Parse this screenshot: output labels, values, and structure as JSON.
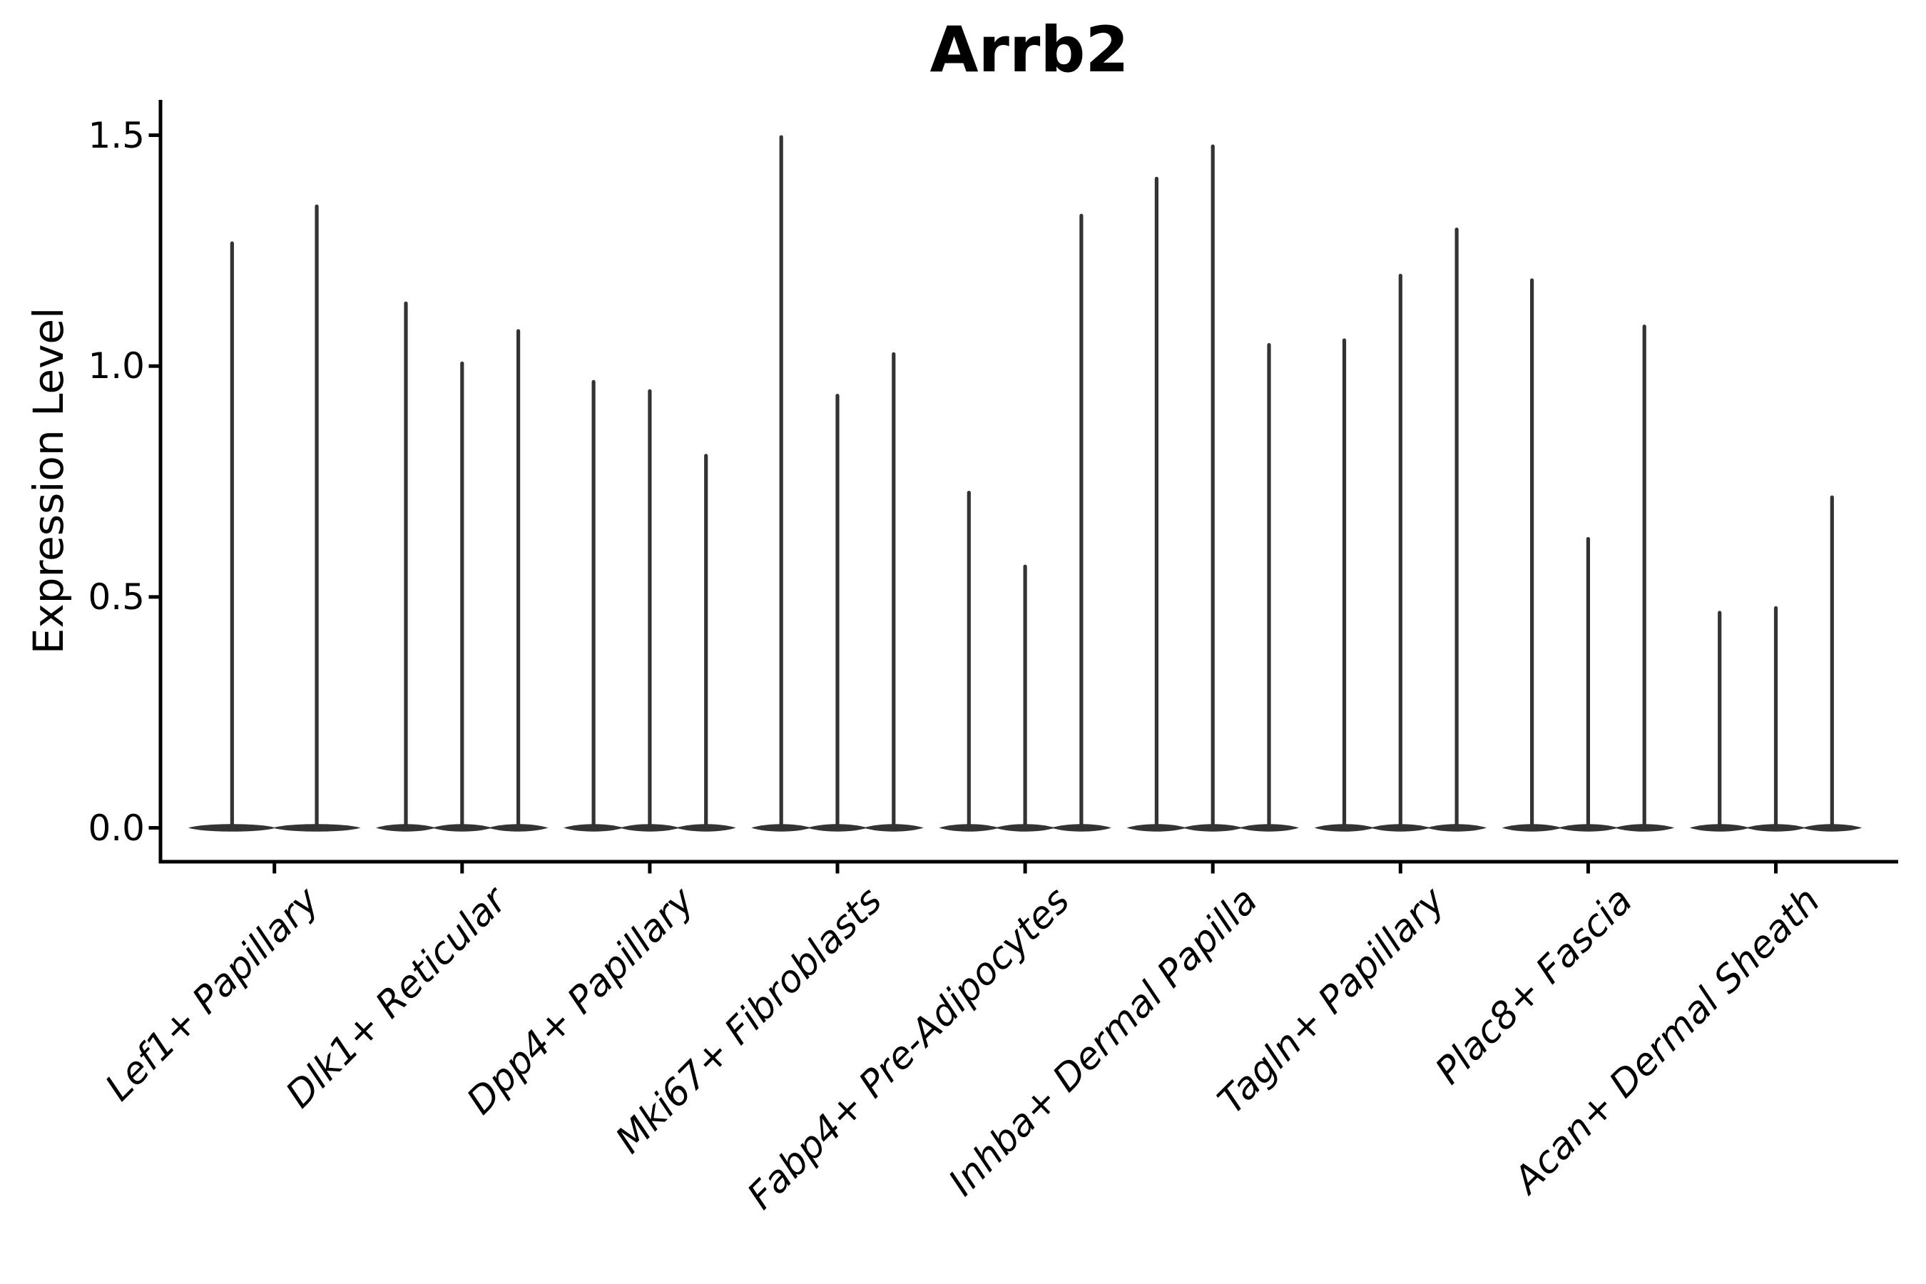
{
  "chart_data": {
    "type": "violin",
    "title": "Arrb2",
    "ylabel": "Expression Level",
    "xlabel": "",
    "ytick_labels": [
      "0.0",
      "0.5",
      "1.0",
      "1.5"
    ],
    "ytick_values": [
      0.0,
      0.5,
      1.0,
      1.5
    ],
    "ylim": [
      0.0,
      1.5
    ],
    "grid": false,
    "legend": "none",
    "violin_color": "#333333",
    "axis_color": "#000000",
    "categories": [
      "Lef1+ Papillary",
      "Dlk1+ Reticular",
      "Dpp4+ Papillary",
      "Mki67+ Fibroblasts",
      "Fabp4+ Pre-Adipocytes",
      "Inhba+ Dermal Papilla",
      "Tagln+ Papillary",
      "Plac8+ Fascia",
      "Acan+ Dermal Sheath"
    ],
    "series": [
      {
        "category": "Lef1+ Papillary",
        "violin_max_expression": [
          1.27,
          1.35
        ],
        "bulk_at": 0.0
      },
      {
        "category": "Dlk1+ Reticular",
        "violin_max_expression": [
          1.14,
          1.01,
          1.08
        ],
        "bulk_at": 0.0
      },
      {
        "category": "Dpp4+ Papillary",
        "violin_max_expression": [
          0.97,
          0.95,
          0.81
        ],
        "bulk_at": 0.0
      },
      {
        "category": "Mki67+ Fibroblasts",
        "violin_max_expression": [
          1.5,
          0.94,
          1.03
        ],
        "bulk_at": 0.0
      },
      {
        "category": "Fabp4+ Pre-Adipocytes",
        "violin_max_expression": [
          0.73,
          0.57,
          1.33
        ],
        "bulk_at": 0.0
      },
      {
        "category": "Inhba+ Dermal Papilla",
        "violin_max_expression": [
          1.41,
          1.48,
          1.05
        ],
        "bulk_at": 0.0
      },
      {
        "category": "Tagln+ Papillary",
        "violin_max_expression": [
          1.06,
          1.2,
          1.3
        ],
        "bulk_at": 0.0
      },
      {
        "category": "Plac8+ Fascia",
        "violin_max_expression": [
          1.19,
          0.63,
          1.09
        ],
        "bulk_at": 0.0
      },
      {
        "category": "Acan+ Dermal Sheath",
        "violin_max_expression": [
          0.47,
          0.48,
          0.72
        ],
        "bulk_at": 0.0
      }
    ]
  }
}
